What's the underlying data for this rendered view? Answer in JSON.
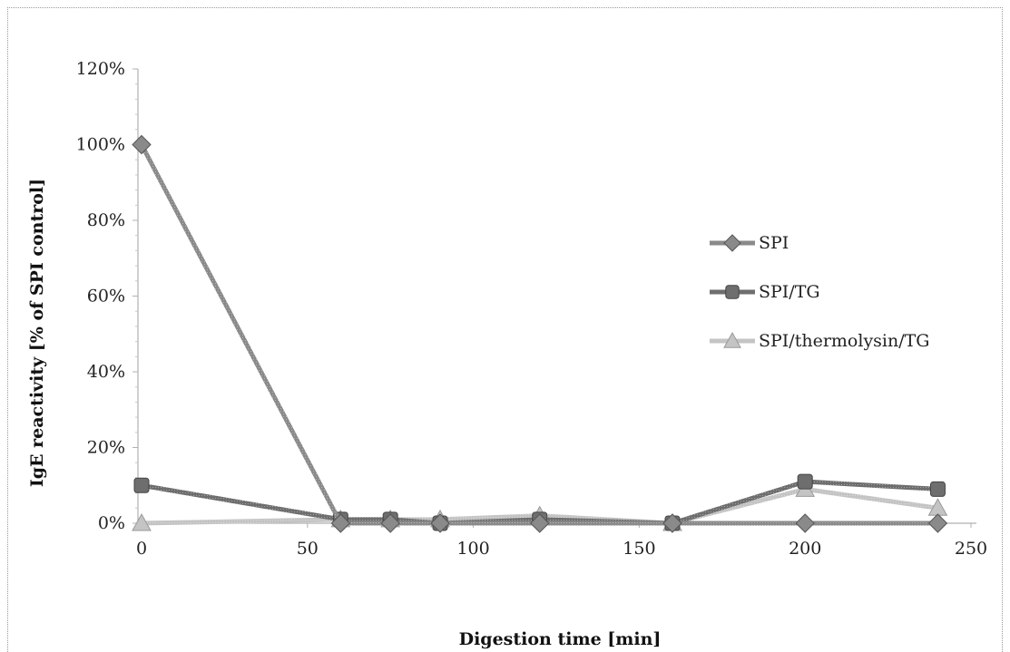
{
  "chart_data": {
    "type": "line",
    "xlabel": "Digestion time [min]",
    "ylabel": "IgE reactivity [% of SPI control]",
    "xlim": [
      0,
      250
    ],
    "ylim": [
      0,
      1.2
    ],
    "x_ticks": [
      0,
      50,
      100,
      150,
      200,
      250
    ],
    "y_ticks": [
      0,
      0.2,
      0.4,
      0.6,
      0.8,
      1.0,
      1.2
    ],
    "y_tick_labels": [
      "0%",
      "20%",
      "40%",
      "60%",
      "80%",
      "100%",
      "120%"
    ],
    "grid": false,
    "legend_position": "right",
    "series": [
      {
        "name": "SPI",
        "color": "#8a8a8a",
        "marker": "diamond",
        "x": [
          0,
          60,
          75,
          90,
          120,
          160,
          200,
          240
        ],
        "y": [
          1.0,
          0.0,
          0.0,
          0.0,
          0.0,
          0.0,
          0.0,
          0.0
        ]
      },
      {
        "name": "SPI/TG",
        "color": "#6e6e6e",
        "marker": "square",
        "x": [
          0,
          60,
          75,
          90,
          120,
          160,
          200,
          240
        ],
        "y": [
          0.1,
          0.01,
          0.01,
          0.0,
          0.01,
          0.0,
          0.11,
          0.09
        ]
      },
      {
        "name": "SPI/thermolysin/TG",
        "color": "#c4c4c4",
        "marker": "triangle",
        "x": [
          0,
          60,
          75,
          90,
          120,
          160,
          200,
          240
        ],
        "y": [
          0.0,
          0.01,
          0.01,
          0.01,
          0.02,
          0.0,
          0.09,
          0.04
        ]
      }
    ]
  }
}
